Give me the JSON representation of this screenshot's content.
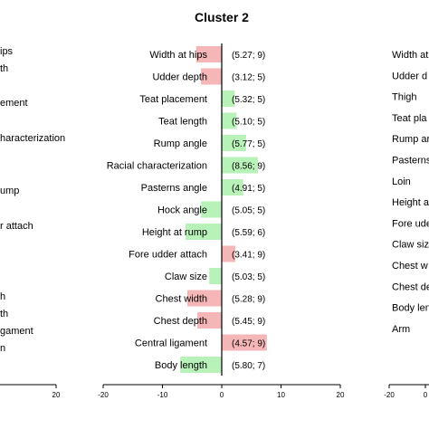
{
  "chart_data": {
    "type": "bar",
    "title": "Cluster 2",
    "xlim": [
      -20,
      20
    ],
    "xticks": [
      -20,
      -10,
      0,
      10,
      20
    ],
    "colors": {
      "positive": "#b8f2b8",
      "negative": "#f4b6b6"
    },
    "categories": [
      "Width at hips",
      "Udder depth",
      "Teat placement",
      "Teat length",
      "Rump angle",
      "Racial characterization",
      "Pasterns angle",
      "Hock angle",
      "Height at rump",
      "Fore udder attach",
      "Claw size",
      "Chest width",
      "Chest depth",
      "Central ligament",
      "Body length"
    ],
    "values": [
      -4.3,
      -3.5,
      2.2,
      2.5,
      4.1,
      6.1,
      3.6,
      -3.5,
      -6.1,
      2.3,
      -2.1,
      -5.8,
      -4.1,
      7.6,
      -7.0
    ],
    "colorgroups": [
      "negative",
      "negative",
      "positive",
      "positive",
      "positive",
      "positive",
      "positive",
      "positive",
      "positive",
      "negative",
      "positive",
      "negative",
      "negative",
      "negative",
      "positive"
    ],
    "annotations": [
      "(5.27; 9)",
      "(3.12; 5)",
      "(5.32; 5)",
      "(5.10; 5)",
      "(5.77; 5)",
      "(8.56; 9)",
      "(4.91; 5)",
      "(5.05; 5)",
      "(5.59; 6)",
      "(3.41; 9)",
      "(5.03; 5)",
      "(5.28; 9)",
      "(5.45; 9)",
      "(4.57; 9)",
      "(5.80; 7)"
    ]
  },
  "left_panel": {
    "labels": [
      "ips",
      "th",
      "ement",
      "haracterization",
      "ump",
      "r attach",
      "h",
      "th",
      "gament",
      "n"
    ],
    "xticks": [
      20
    ]
  },
  "right_panel": {
    "labels": [
      "Width at",
      "Udder d",
      "Thigh",
      "Teat pla",
      "Rump ar",
      "Pasterns",
      "Loin",
      "Height a",
      "Fore ude",
      "Claw siz",
      "Chest w",
      "Chest de",
      "Body len",
      "Arm"
    ],
    "xticks": [
      -20,
      0
    ]
  }
}
